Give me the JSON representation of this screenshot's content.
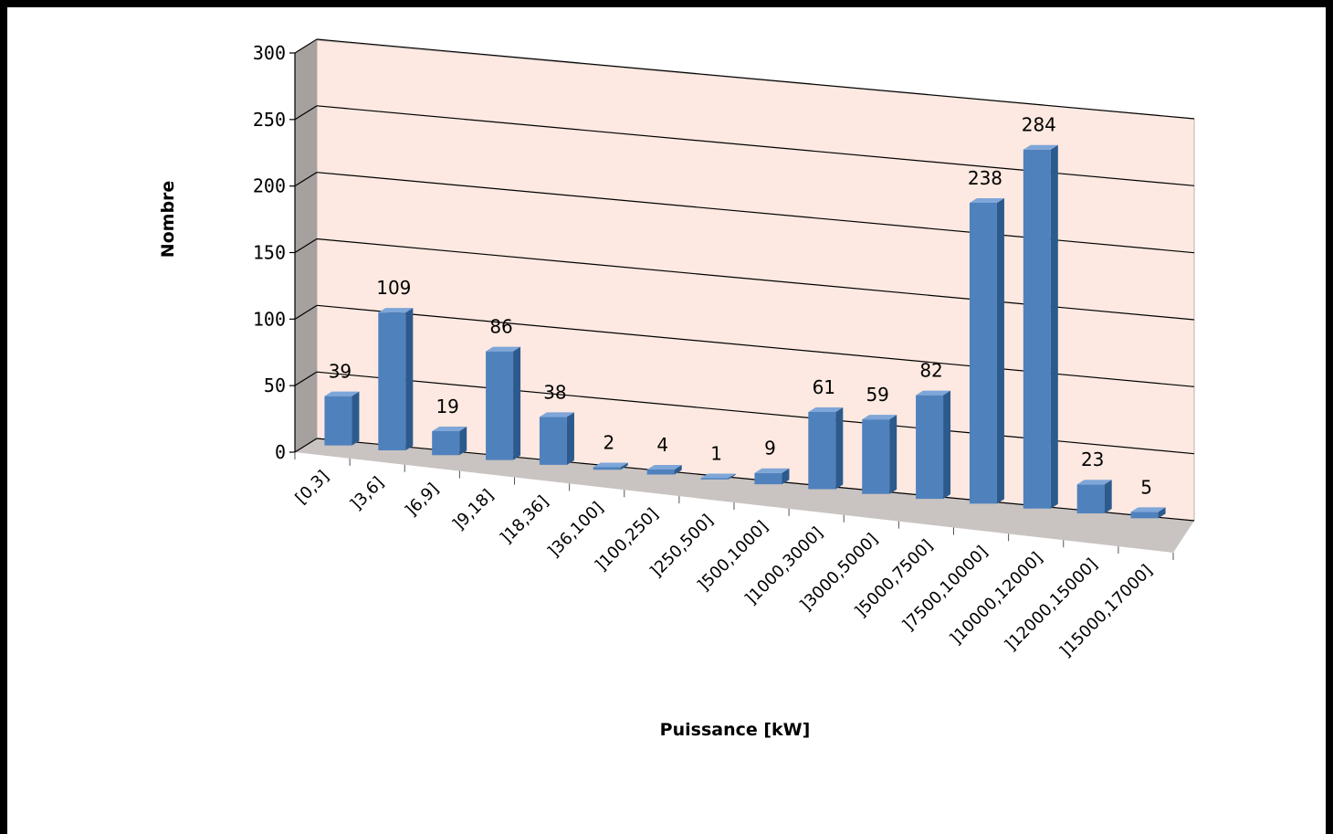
{
  "chart_data": {
    "type": "bar",
    "title": "",
    "xlabel": "Puissance [kW]",
    "ylabel": "Nombre",
    "ylim": [
      0,
      300
    ],
    "yticks": [
      0,
      50,
      100,
      150,
      200,
      250,
      300
    ],
    "grid": true,
    "three_d": true,
    "categories": [
      "[0,3]",
      "]3,6]",
      "]6,9]",
      "]9,18]",
      "]18,36]",
      "]36,100]",
      "]100,250]",
      "]250,500]",
      "]500,1000]",
      "]1000,3000]",
      "]3000,5000]",
      "]5000,7500]",
      "]7500,10000]",
      "]10000,12000]",
      "]12000,15000]",
      "]15000,17000]"
    ],
    "series": [
      {
        "values": [
          39,
          109,
          19,
          86,
          38,
          2,
          4,
          1,
          9,
          61,
          59,
          82,
          238,
          284,
          23,
          5
        ],
        "labels": [
          "39",
          "109",
          "19",
          "86",
          "38",
          "2",
          "4",
          "1",
          "9",
          "61",
          "59",
          "82",
          "238",
          "284",
          "23",
          "5"
        ]
      }
    ],
    "colors": {
      "bar_front": "#4f81bd",
      "bar_side": "#2c5a8c",
      "bar_top": "#7ea6d8",
      "wall": "#fde9e1",
      "side_wall": "#a6a09e",
      "floor": "#c9c3c1",
      "grid": "#000000"
    }
  }
}
